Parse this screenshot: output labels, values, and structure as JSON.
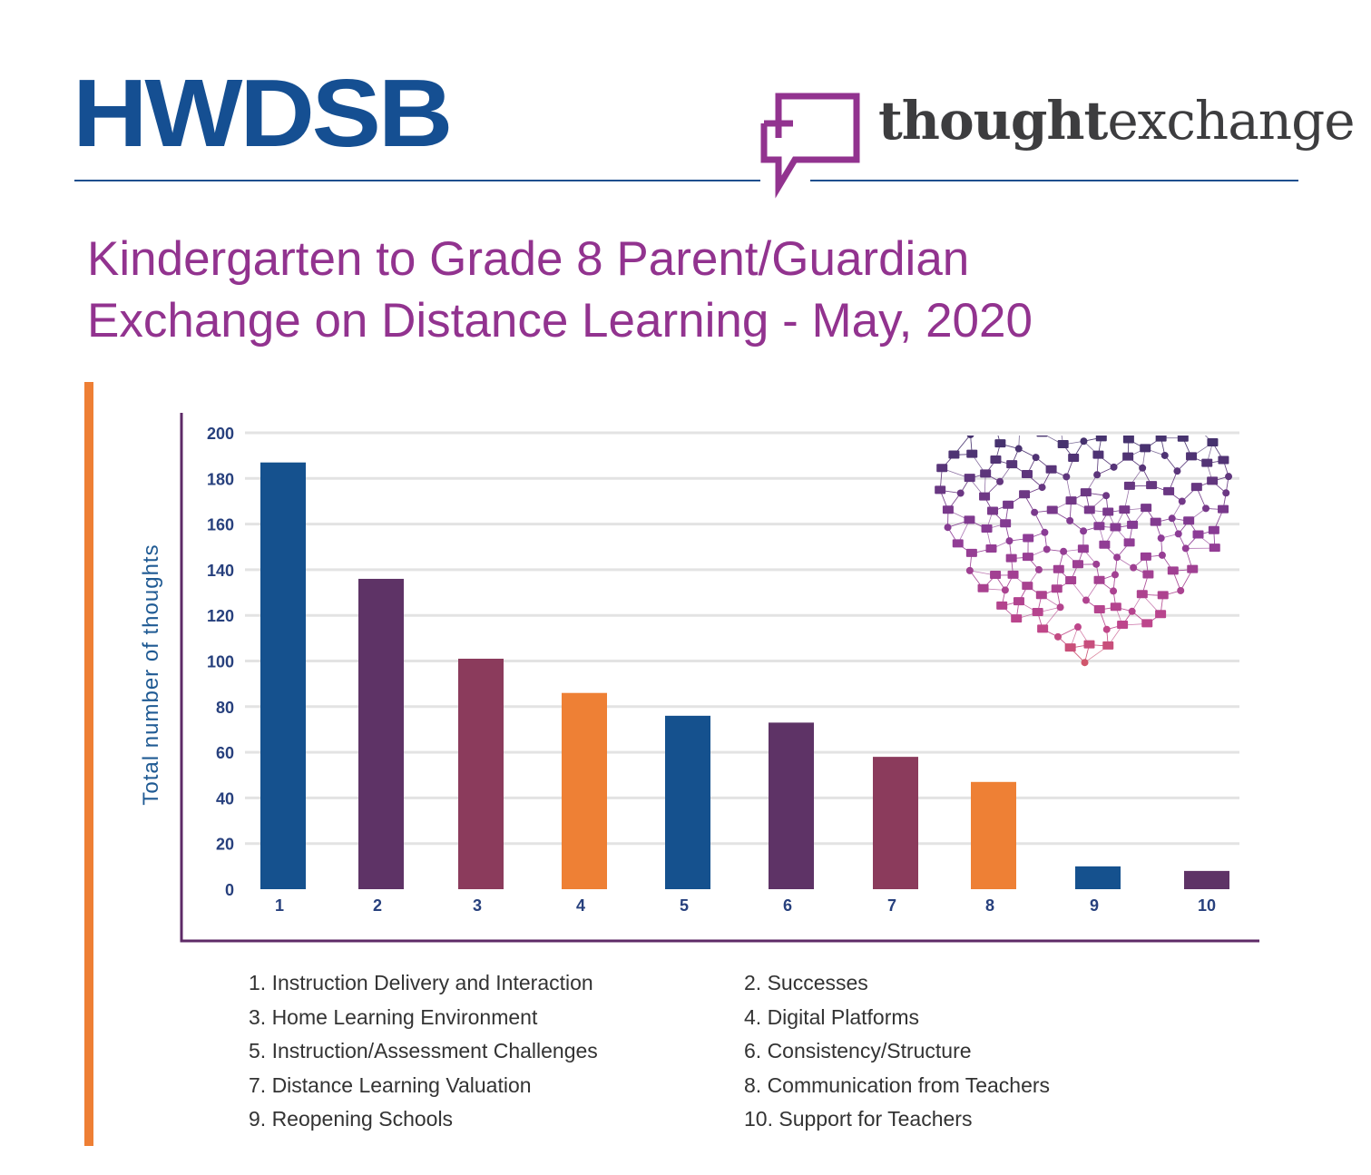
{
  "header": {
    "org_logo": "HWDSB",
    "partner_logo_bold": "thought",
    "partner_logo_light": "exchange"
  },
  "title_lines": [
    "Kindergarten to Grade 8 Parent/Guardian",
    "Exchange on Distance Learning - May, 2020"
  ],
  "colors": {
    "brand_blue": "#154f92",
    "purple_title": "#92338f",
    "orange_accent": "#ee7f35",
    "axis_purple": "#5e2a67",
    "tick_label_blue": "#27407d",
    "bar_colors": [
      "#15518e",
      "#5e3366",
      "#8b3b5c",
      "#ee8035"
    ]
  },
  "chart_data": {
    "type": "bar",
    "title": "",
    "xlabel": "",
    "ylabel": "Total number of thoughts",
    "ylim": [
      0,
      200
    ],
    "yticks": [
      0,
      20,
      40,
      60,
      80,
      100,
      120,
      140,
      160,
      180,
      200
    ],
    "categories": [
      "1",
      "2",
      "3",
      "4",
      "5",
      "6",
      "7",
      "8",
      "9",
      "10"
    ],
    "values": [
      187,
      136,
      101,
      86,
      76,
      73,
      58,
      47,
      10,
      8
    ],
    "bar_color_cycle": [
      "#15518e",
      "#5e3366",
      "#8b3b5c",
      "#ee8035"
    ],
    "grid": true,
    "legend_position": "bottom"
  },
  "legend_items": [
    "1. Instruction Delivery and Interaction",
    "2. Successes",
    "3. Home Learning Environment",
    "4. Digital Platforms",
    "5. Instruction/Assessment Challenges",
    "6. Consistency/Structure",
    "7. Distance Learning Valuation",
    "8. Communication from Teachers",
    "9. Reopening Schools",
    "10. Support for Teachers"
  ]
}
